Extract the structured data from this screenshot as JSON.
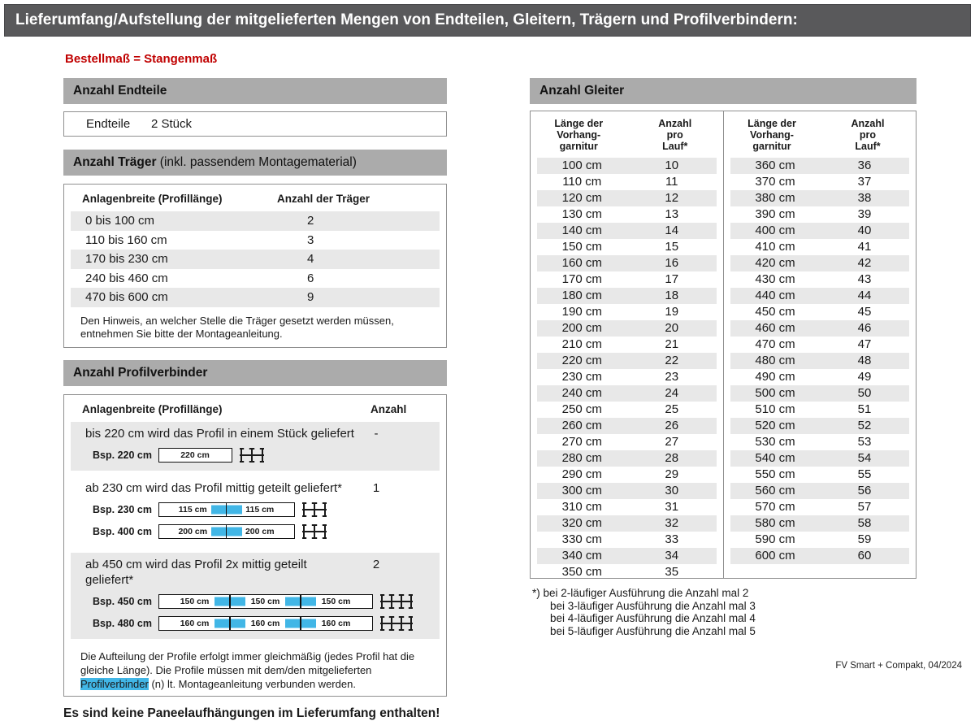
{
  "title": "Lieferumfang/Aufstellung der mitgelieferten Mengen von Endteilen, Gleitern, Trägern und Profilverbindern:",
  "subtitle": "Bestellmaß = Stangenmaß",
  "endteile": {
    "header": "Anzahl Endteile",
    "label": "Endteile",
    "value": "2 Stück"
  },
  "traeger": {
    "header_bold": "Anzahl Träger",
    "header_rest": " (inkl. passendem Montagematerial)",
    "col1": "Anlagenbreite (Profillänge)",
    "col2": "Anzahl der Träger",
    "rows": [
      {
        "range": "0 bis 100 cm",
        "count": "2"
      },
      {
        "range": "110 bis 160 cm",
        "count": "3"
      },
      {
        "range": "170 bis 230 cm",
        "count": "4"
      },
      {
        "range": "240 bis 460 cm",
        "count": "6"
      },
      {
        "range": "470 bis 600 cm",
        "count": "9"
      }
    ],
    "note": "Den Hinweis, an welcher Stelle die Träger gesetzt werden müssen, entnehmen Sie bitte der Montageanleitung."
  },
  "profilverbinder": {
    "header": "Anzahl Profilverbinder",
    "col1": "Anlagenbreite (Profillänge)",
    "col2": "Anzahl",
    "blocks": [
      {
        "text": "bis 220 cm wird das Profil in einem Stück geliefert",
        "anzahl": "-",
        "examples": [
          {
            "label": "Bsp. 220 cm",
            "segments": [
              "220 cm"
            ]
          }
        ]
      },
      {
        "text": "ab 230 cm wird das Profil mittig geteilt geliefert*",
        "anzahl": "1",
        "examples": [
          {
            "label": "Bsp. 230 cm",
            "segments": [
              "115 cm",
              "115 cm"
            ]
          },
          {
            "label": "Bsp. 400 cm",
            "segments": [
              "200 cm",
              "200 cm"
            ]
          }
        ]
      },
      {
        "text": "ab 450 cm wird das Profil 2x mittig geteilt geliefert*",
        "anzahl": "2",
        "examples": [
          {
            "label": "Bsp. 450 cm",
            "segments": [
              "150 cm",
              "150 cm",
              "150 cm"
            ]
          },
          {
            "label": "Bsp. 480 cm",
            "segments": [
              "160 cm",
              "160 cm",
              "160 cm"
            ]
          }
        ]
      }
    ],
    "note_part1": "Die Aufteilung der Profile erfolgt immer gleichmäßig (jedes Profil hat die gleiche Länge). Die Profile müssen mit dem/den mitgelieferten ",
    "note_highlight": "Profilverbinder",
    "note_part2": " (n) lt. Montageanleitung verbunden werden."
  },
  "no_paneel": "Es sind keine Paneelaufhängungen im Lieferumfang enthalten!",
  "gleiter": {
    "header": "Anzahl Gleiter",
    "col1": [
      "Länge der",
      "Vorhang-",
      "garnitur"
    ],
    "col2": [
      "Anzahl",
      "pro",
      "Lauf*"
    ],
    "left_rows": [
      [
        "100 cm",
        "10"
      ],
      [
        "110 cm",
        "11"
      ],
      [
        "120 cm",
        "12"
      ],
      [
        "130 cm",
        "13"
      ],
      [
        "140 cm",
        "14"
      ],
      [
        "150 cm",
        "15"
      ],
      [
        "160 cm",
        "16"
      ],
      [
        "170 cm",
        "17"
      ],
      [
        "180 cm",
        "18"
      ],
      [
        "190 cm",
        "19"
      ],
      [
        "200 cm",
        "20"
      ],
      [
        "210 cm",
        "21"
      ],
      [
        "220 cm",
        "22"
      ],
      [
        "230 cm",
        "23"
      ],
      [
        "240 cm",
        "24"
      ],
      [
        "250 cm",
        "25"
      ],
      [
        "260 cm",
        "26"
      ],
      [
        "270 cm",
        "27"
      ],
      [
        "280 cm",
        "28"
      ],
      [
        "290 cm",
        "29"
      ],
      [
        "300 cm",
        "30"
      ],
      [
        "310 cm",
        "31"
      ],
      [
        "320 cm",
        "32"
      ],
      [
        "330 cm",
        "33"
      ],
      [
        "340 cm",
        "34"
      ],
      [
        "350 cm",
        "35"
      ]
    ],
    "right_rows": [
      [
        "360 cm",
        "36"
      ],
      [
        "370 cm",
        "37"
      ],
      [
        "380 cm",
        "38"
      ],
      [
        "390 cm",
        "39"
      ],
      [
        "400 cm",
        "40"
      ],
      [
        "410 cm",
        "41"
      ],
      [
        "420 cm",
        "42"
      ],
      [
        "430 cm",
        "43"
      ],
      [
        "440 cm",
        "44"
      ],
      [
        "450 cm",
        "45"
      ],
      [
        "460 cm",
        "46"
      ],
      [
        "470 cm",
        "47"
      ],
      [
        "480 cm",
        "48"
      ],
      [
        "490 cm",
        "49"
      ],
      [
        "500 cm",
        "50"
      ],
      [
        "510 cm",
        "51"
      ],
      [
        "520 cm",
        "52"
      ],
      [
        "530 cm",
        "53"
      ],
      [
        "540 cm",
        "54"
      ],
      [
        "550 cm",
        "55"
      ],
      [
        "560 cm",
        "56"
      ],
      [
        "570 cm",
        "57"
      ],
      [
        "580 cm",
        "58"
      ],
      [
        "590 cm",
        "59"
      ],
      [
        "600 cm",
        "60"
      ]
    ],
    "footnotes": [
      "*) bei 2-läufiger Ausführung die Anzahl mal 2",
      "bei 3-läufiger Ausführung die Anzahl mal 3",
      "bei 4-läufiger Ausführung die Anzahl mal 4",
      "bei 5-läufiger Ausführung die Anzahl mal 5"
    ]
  },
  "footer": "FV Smart + Compakt, 04/2024",
  "colors": {
    "title_bar": "#59595b",
    "section_bar": "#ababab",
    "stripe": "#e8e8e8",
    "accent_blue": "#41b6e6",
    "accent_red": "#c00000"
  }
}
